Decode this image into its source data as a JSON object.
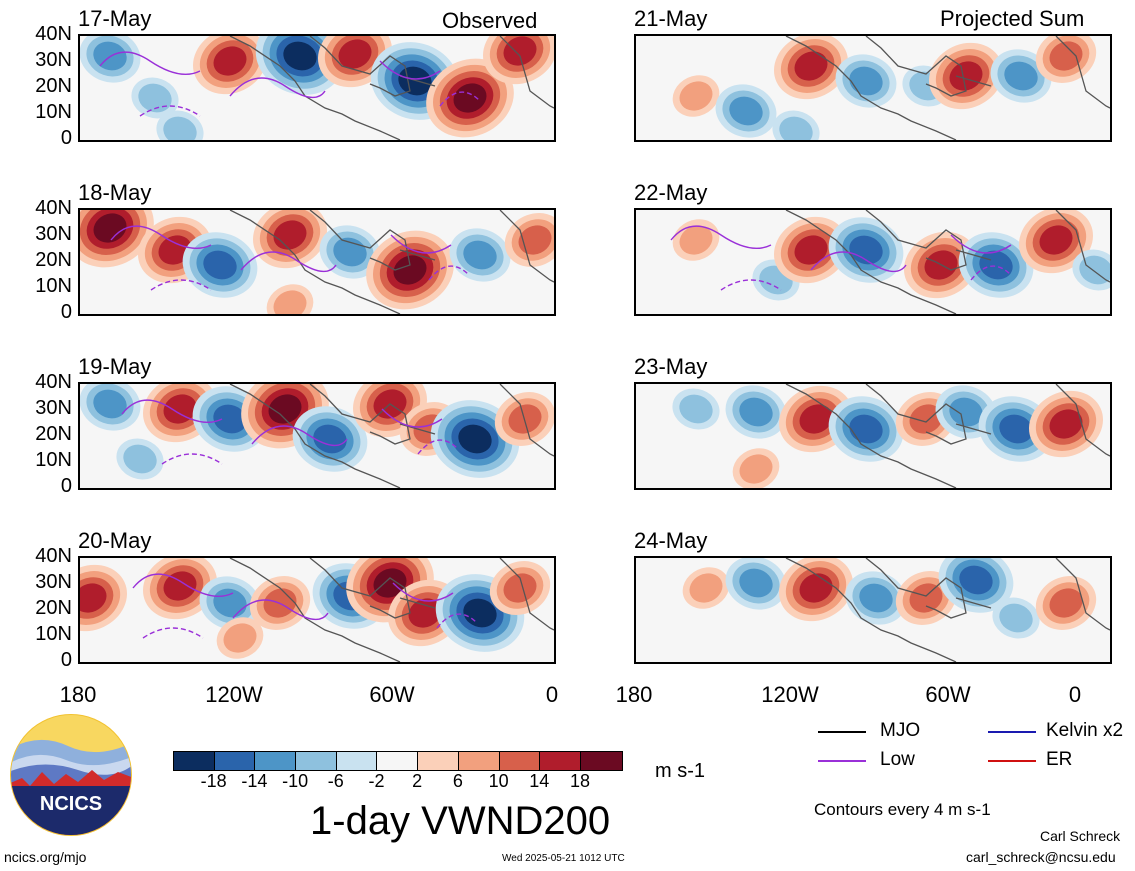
{
  "panels_left": [
    {
      "date": "17-May"
    },
    {
      "date": "18-May"
    },
    {
      "date": "19-May"
    },
    {
      "date": "20-May"
    }
  ],
  "panels_right": [
    {
      "date": "21-May"
    },
    {
      "date": "22-May"
    },
    {
      "date": "23-May"
    },
    {
      "date": "24-May"
    }
  ],
  "headers": {
    "left": "Observed",
    "right": "Projected Sum"
  },
  "lat_labels": [
    "40N",
    "30N",
    "20N",
    "10N",
    "0"
  ],
  "lon_labels": [
    "180",
    "120W",
    "60W",
    "0"
  ],
  "colorbar": {
    "colors": [
      "#0c2d5f",
      "#2a64ab",
      "#4d95c7",
      "#8ec1de",
      "#c9e2f0",
      "#f6f6f6",
      "#fbd0b9",
      "#f2a07e",
      "#d7604b",
      "#b01d2c",
      "#6b0a22"
    ],
    "ticks": [
      "-18",
      "-14",
      "-10",
      "-6",
      "-2",
      "2",
      "6",
      "10",
      "14",
      "18"
    ],
    "unit": "m s-1",
    "title": "1-day VWND200"
  },
  "legend": {
    "items": [
      {
        "label": "MJO",
        "color": "#000000"
      },
      {
        "label": "Kelvin x2",
        "color": "#1a1ab0"
      },
      {
        "label": "Low",
        "color": "#9a30d8"
      },
      {
        "label": "ER",
        "color": "#d01010"
      }
    ],
    "note": "Contours every 4 m s-1"
  },
  "footer": {
    "site": "ncics.org/mjo",
    "timestamp": "Wed 2025-05-21 1012 UTC",
    "author": "Carl Schreck",
    "email": "carl_schreck@ncsu.edu",
    "logo_text": "NCICS"
  }
}
